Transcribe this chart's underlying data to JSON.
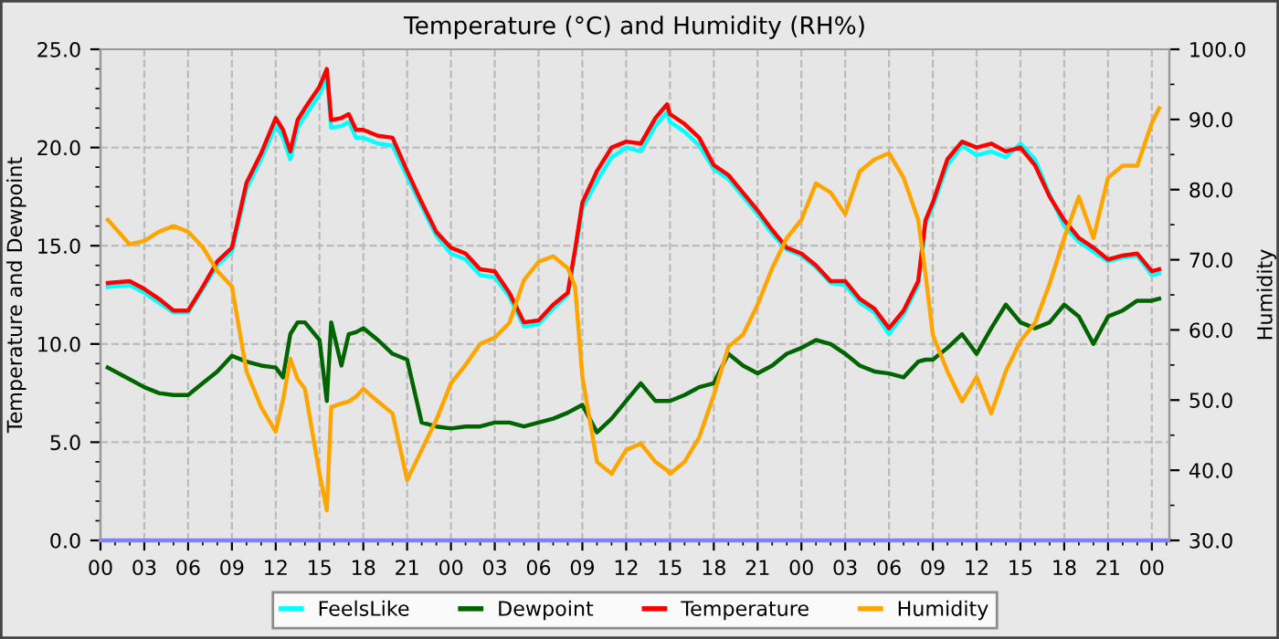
{
  "chart_data": {
    "type": "line",
    "title": "Temperature (°C) and Humidity (RH%)",
    "ylabel": "Temperature and Dewpoint",
    "y2label": "Humidity",
    "x": [
      0.5,
      2,
      3,
      4,
      5,
      6,
      7,
      8,
      9,
      10,
      11,
      12,
      12.5,
      13,
      13.5,
      14,
      15,
      15.5,
      15.8,
      16.5,
      17,
      17.5,
      18,
      19,
      20,
      21,
      22,
      23,
      24,
      25,
      26,
      27,
      28,
      29,
      30,
      31,
      32,
      32.5,
      33,
      34,
      35,
      36,
      37,
      38,
      38.8,
      39,
      40,
      41,
      42,
      43,
      44,
      45,
      46,
      47,
      48,
      49,
      50,
      51,
      52,
      53,
      54,
      55,
      56,
      56.5,
      57,
      58,
      59,
      60,
      61,
      62,
      63,
      64,
      65,
      66,
      67,
      68,
      69,
      70,
      71,
      72,
      72.5
    ],
    "series": [
      {
        "name": "FeelsLike",
        "color": "#00ffff",
        "values": [
          12.9,
          13.0,
          12.6,
          12.1,
          11.6,
          11.6,
          12.8,
          14.0,
          14.7,
          17.9,
          19.4,
          21.1,
          20.5,
          19.4,
          21.0,
          21.6,
          22.7,
          23.6,
          21.0,
          21.1,
          21.3,
          20.5,
          20.5,
          20.2,
          20.1,
          18.5,
          17.0,
          15.5,
          14.6,
          14.3,
          13.5,
          13.4,
          12.4,
          10.9,
          11.0,
          11.8,
          12.5,
          14.6,
          16.9,
          18.3,
          19.5,
          20.0,
          19.8,
          21.1,
          21.8,
          21.3,
          20.8,
          20.1,
          18.9,
          18.4,
          17.5,
          16.6,
          15.6,
          14.8,
          14.5,
          13.9,
          13.1,
          13.0,
          12.1,
          11.6,
          10.5,
          11.5,
          13.0,
          16.1,
          17.0,
          19.1,
          20.1,
          19.6,
          19.8,
          19.5,
          20.2,
          19.4,
          17.6,
          16.0,
          15.2,
          14.7,
          14.2,
          14.4,
          14.5,
          13.5,
          13.6
        ]
      },
      {
        "name": "Dewpoint",
        "color": "#006400",
        "values": [
          8.8,
          8.2,
          7.8,
          7.5,
          7.4,
          7.4,
          8.0,
          8.6,
          9.4,
          9.1,
          8.9,
          8.8,
          8.3,
          10.5,
          11.1,
          11.1,
          10.2,
          7.1,
          11.1,
          8.9,
          10.5,
          10.6,
          10.8,
          10.2,
          9.5,
          9.2,
          6.0,
          5.8,
          5.7,
          5.8,
          5.8,
          6.0,
          6.0,
          5.8,
          6.0,
          6.2,
          6.5,
          6.7,
          6.9,
          5.5,
          6.2,
          7.1,
          8.0,
          7.1,
          7.1,
          7.1,
          7.4,
          7.8,
          8.0,
          9.5,
          8.9,
          8.5,
          8.9,
          9.5,
          9.8,
          10.2,
          10.0,
          9.5,
          8.9,
          8.6,
          8.5,
          8.3,
          9.1,
          9.2,
          9.2,
          9.8,
          10.5,
          9.5,
          10.8,
          12.0,
          11.1,
          10.8,
          11.1,
          12.0,
          11.4,
          10.0,
          11.4,
          11.7,
          12.2,
          12.2,
          12.3
        ]
      },
      {
        "name": "Temperature",
        "color": "#ff0000",
        "values": [
          13.1,
          13.2,
          12.8,
          12.3,
          11.7,
          11.7,
          12.9,
          14.2,
          14.9,
          18.2,
          19.7,
          21.5,
          20.9,
          19.8,
          21.4,
          22.0,
          23.1,
          24.0,
          21.4,
          21.5,
          21.7,
          20.9,
          20.9,
          20.6,
          20.5,
          18.8,
          17.2,
          15.7,
          14.9,
          14.6,
          13.8,
          13.7,
          12.6,
          11.1,
          11.2,
          12.0,
          12.6,
          14.8,
          17.2,
          18.8,
          20.0,
          20.3,
          20.2,
          21.5,
          22.2,
          21.7,
          21.2,
          20.5,
          19.1,
          18.6,
          17.7,
          16.8,
          15.8,
          14.9,
          14.6,
          14.0,
          13.2,
          13.2,
          12.3,
          11.8,
          10.8,
          11.7,
          13.2,
          16.3,
          17.2,
          19.4,
          20.3,
          20.0,
          20.2,
          19.8,
          20.0,
          19.1,
          17.5,
          16.3,
          15.4,
          14.9,
          14.3,
          14.5,
          14.6,
          13.7,
          13.8
        ]
      },
      {
        "color": "#8080ff",
        "x": [
          0,
          73.2
        ],
        "values": [
          0,
          0
        ]
      },
      {
        "name": "Humidity",
        "color": "#ffa500",
        "axis": "y2",
        "values": [
          75.7,
          72.2,
          72.7,
          74.0,
          74.8,
          74.0,
          71.8,
          68.4,
          66.2,
          54.1,
          49.0,
          45.5,
          50.0,
          55.9,
          53.0,
          51.6,
          39.5,
          34.3,
          49.0,
          49.5,
          49.8,
          50.5,
          51.6,
          49.8,
          48.1,
          38.6,
          42.9,
          47.2,
          52.4,
          55.0,
          58.0,
          58.9,
          61.0,
          67.1,
          69.7,
          70.5,
          68.8,
          66.2,
          53.3,
          41.2,
          39.5,
          42.9,
          43.8,
          41.2,
          40.0,
          39.5,
          41.2,
          44.7,
          50.7,
          57.6,
          59.3,
          63.6,
          68.8,
          73.1,
          75.7,
          80.9,
          79.6,
          76.5,
          82.6,
          84.3,
          85.2,
          81.7,
          75.7,
          68.0,
          59.3,
          54.1,
          49.8,
          53.3,
          48.1,
          54.1,
          58.4,
          61.0,
          66.6,
          73.1,
          79.0,
          73.1,
          81.7,
          83.4,
          83.4,
          89.5,
          91.6
        ]
      }
    ],
    "xlim": [
      0,
      73.2
    ],
    "xticks": [
      {
        "value": 0,
        "label": "00"
      },
      {
        "value": 3,
        "label": "03"
      },
      {
        "value": 6,
        "label": "06"
      },
      {
        "value": 9,
        "label": "09"
      },
      {
        "value": 12,
        "label": "12"
      },
      {
        "value": 15,
        "label": "15"
      },
      {
        "value": 18,
        "label": "18"
      },
      {
        "value": 21,
        "label": "21"
      },
      {
        "value": 24,
        "label": "00"
      },
      {
        "value": 27,
        "label": "03"
      },
      {
        "value": 30,
        "label": "06"
      },
      {
        "value": 33,
        "label": "09"
      },
      {
        "value": 36,
        "label": "12"
      },
      {
        "value": 39,
        "label": "15"
      },
      {
        "value": 42,
        "label": "18"
      },
      {
        "value": 45,
        "label": "21"
      },
      {
        "value": 48,
        "label": "00"
      },
      {
        "value": 51,
        "label": "03"
      },
      {
        "value": 54,
        "label": "06"
      },
      {
        "value": 57,
        "label": "09"
      },
      {
        "value": 60,
        "label": "12"
      },
      {
        "value": 63,
        "label": "15"
      },
      {
        "value": 66,
        "label": "18"
      },
      {
        "value": 69,
        "label": "21"
      },
      {
        "value": 72,
        "label": "00"
      }
    ],
    "ylim": [
      0,
      25
    ],
    "yticks": [
      {
        "value": 0,
        "label": "0.0"
      },
      {
        "value": 5,
        "label": "5.0"
      },
      {
        "value": 10,
        "label": "10.0"
      },
      {
        "value": 15,
        "label": "15.0"
      },
      {
        "value": 20,
        "label": "20.0"
      },
      {
        "value": 25,
        "label": "25.0"
      }
    ],
    "y2lim": [
      30,
      100
    ],
    "y2ticks": [
      {
        "value": 30,
        "label": "30.0"
      },
      {
        "value": 40,
        "label": "40.0"
      },
      {
        "value": 50,
        "label": "50.0"
      },
      {
        "value": 60,
        "label": "60.0"
      },
      {
        "value": 70,
        "label": "70.0"
      },
      {
        "value": 80,
        "label": "80.0"
      },
      {
        "value": 90,
        "label": "90.0"
      },
      {
        "value": 100,
        "label": "100.0"
      }
    ],
    "grid": true,
    "legend": "bottom",
    "line_style": "solid",
    "marker": "none"
  }
}
